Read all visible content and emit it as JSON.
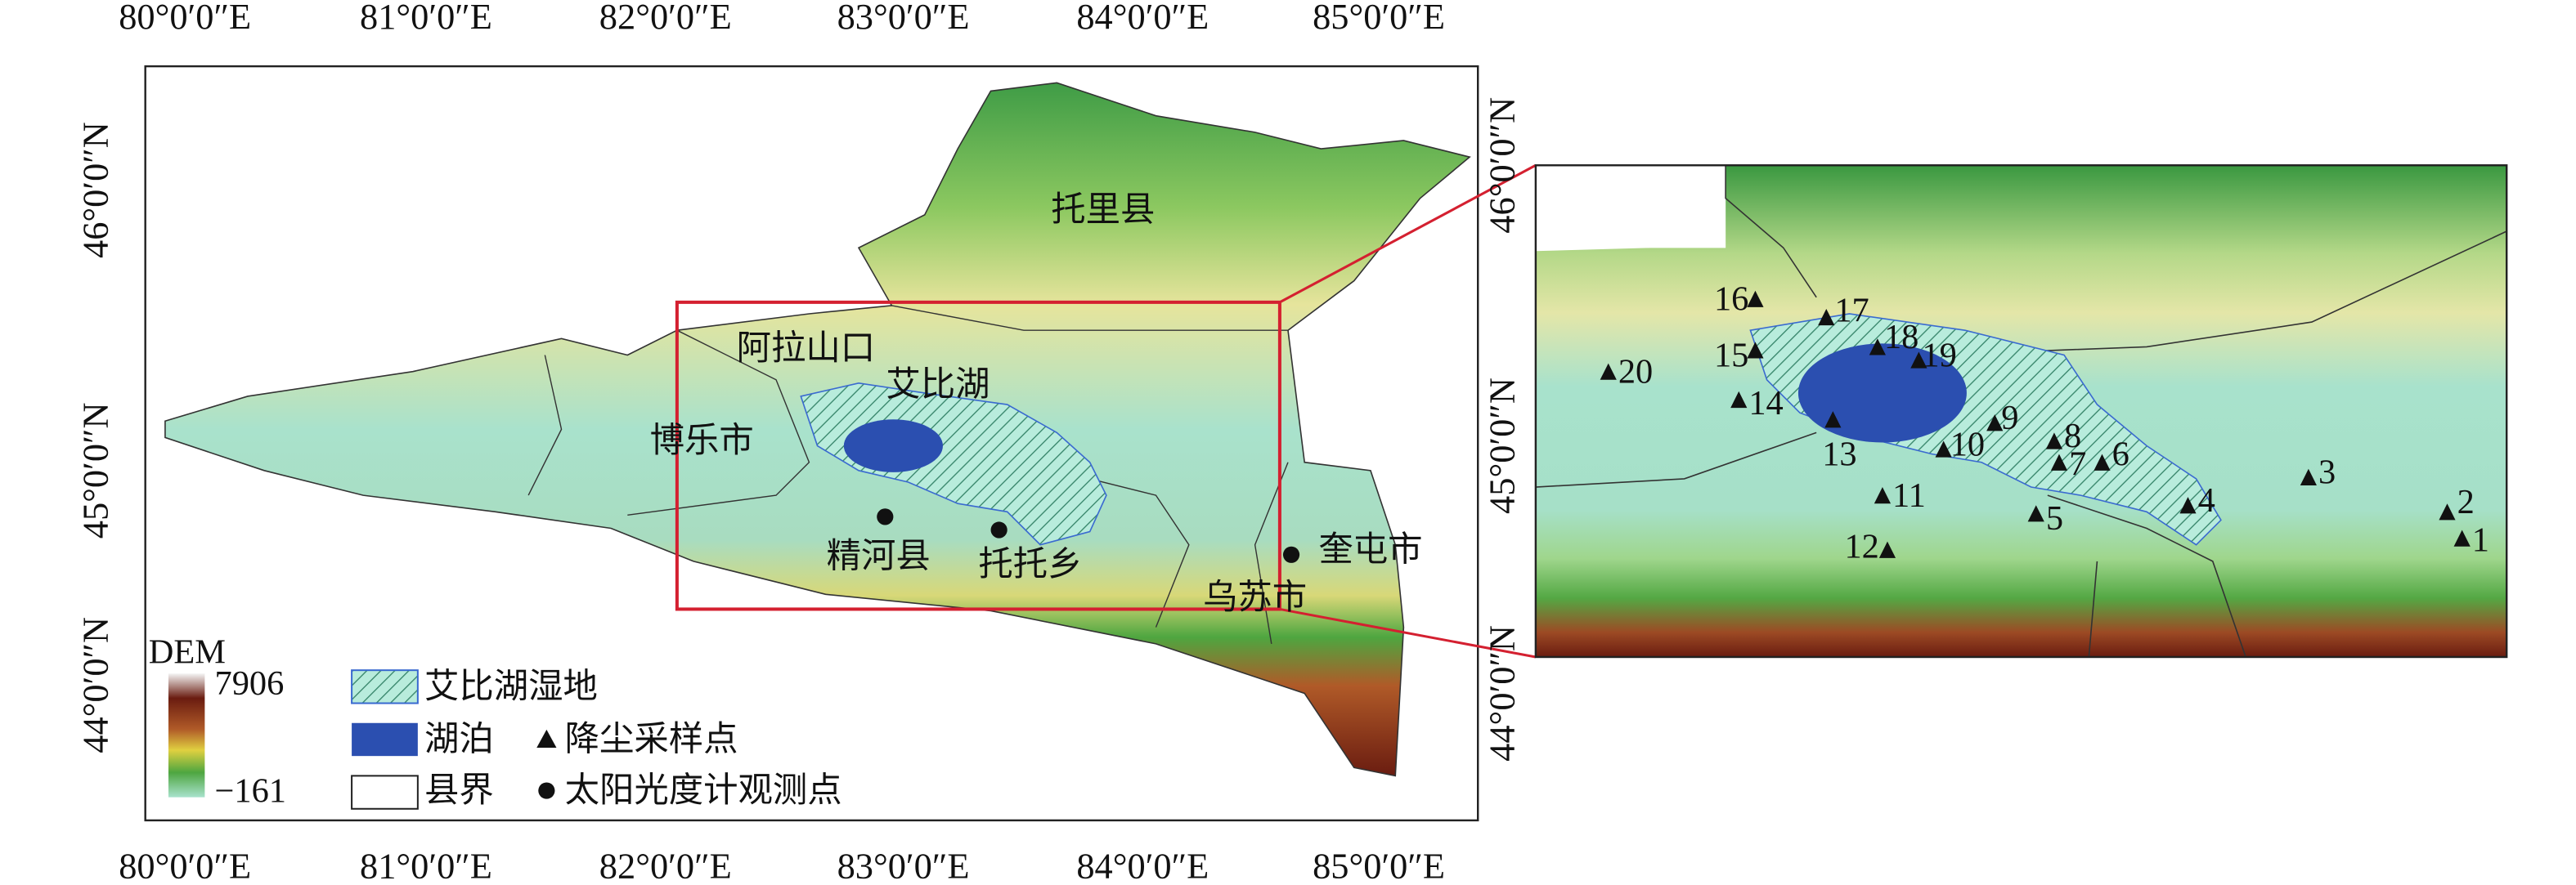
{
  "map": {
    "longitude_ticks": [
      "80°0′0″E",
      "81°0′0″E",
      "82°0′0″E",
      "83°0′0″E",
      "84°0′0″E",
      "85°0′0″E"
    ],
    "latitude_ticks": [
      "46°0′0″N",
      "45°0′0″N",
      "44°0′0″N"
    ],
    "places": [
      "托里县",
      "阿拉山口",
      "艾比湖",
      "博乐市",
      "精河县",
      "托托乡",
      "奎屯市",
      "乌苏市"
    ],
    "legend": {
      "dem_title": "DEM",
      "dem_max": 7906,
      "dem_min": {
        "value": -161,
        "label": "−161"
      },
      "wetland": "艾比湖湿地",
      "lake": "湖泊",
      "dust_site": "降尘采样点",
      "boundary": "县界",
      "photometer_site": "太阳光度计观测点"
    },
    "sample_points": [
      "1",
      "2",
      "3",
      "4",
      "5",
      "6",
      "7",
      "8",
      "9",
      "10",
      "11",
      "12",
      "13",
      "14",
      "15",
      "16",
      "17",
      "18",
      "19",
      "20"
    ]
  }
}
